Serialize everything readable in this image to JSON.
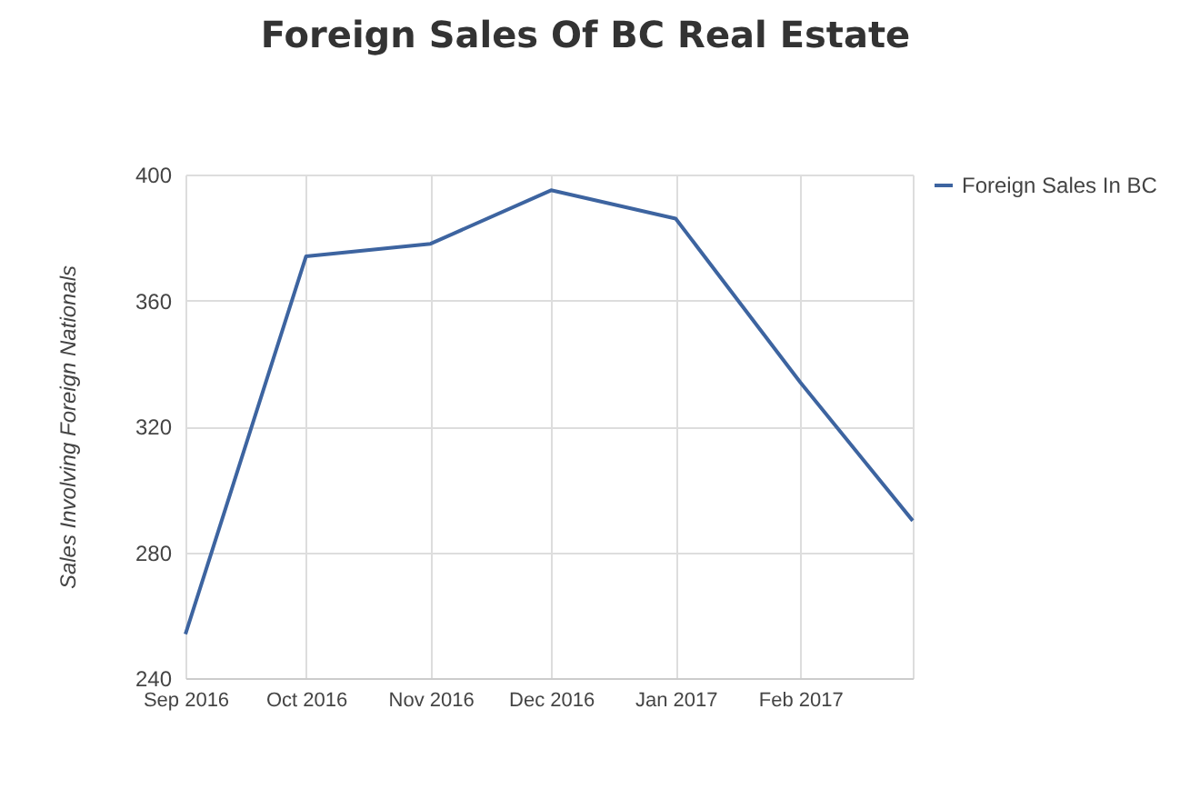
{
  "chart_data": {
    "type": "line",
    "title": "Foreign Sales Of BC Real Estate",
    "ylabel": "Sales Involving Foreign Nationals",
    "x": [
      "2016-09",
      "2016-10",
      "2016-11",
      "2016-12",
      "2017-01",
      "2017-02",
      "2017-03"
    ],
    "series": [
      {
        "name": "Foreign Sales In BC",
        "color": "#3d64a0",
        "values": [
          254,
          374,
          378,
          395,
          386,
          334,
          290
        ]
      }
    ],
    "xlim": [
      "2016-09",
      "2017-03"
    ],
    "xticks": [
      {
        "value": "2016-09",
        "label": "Sep 2016"
      },
      {
        "value": "2016-10",
        "label": "Oct 2016"
      },
      {
        "value": "2016-11",
        "label": "Nov 2016"
      },
      {
        "value": "2016-12",
        "label": "Dec 2016"
      },
      {
        "value": "2017-01",
        "label": "Jan 2017"
      },
      {
        "value": "2017-02",
        "label": "Feb 2017"
      },
      {
        "value": "2017-03",
        "label": null
      }
    ],
    "ylim": [
      240,
      400
    ],
    "yticks": [
      240,
      280,
      320,
      360,
      400
    ],
    "grid": true,
    "legend": "top right",
    "marker": "none",
    "line_style": "solid"
  }
}
